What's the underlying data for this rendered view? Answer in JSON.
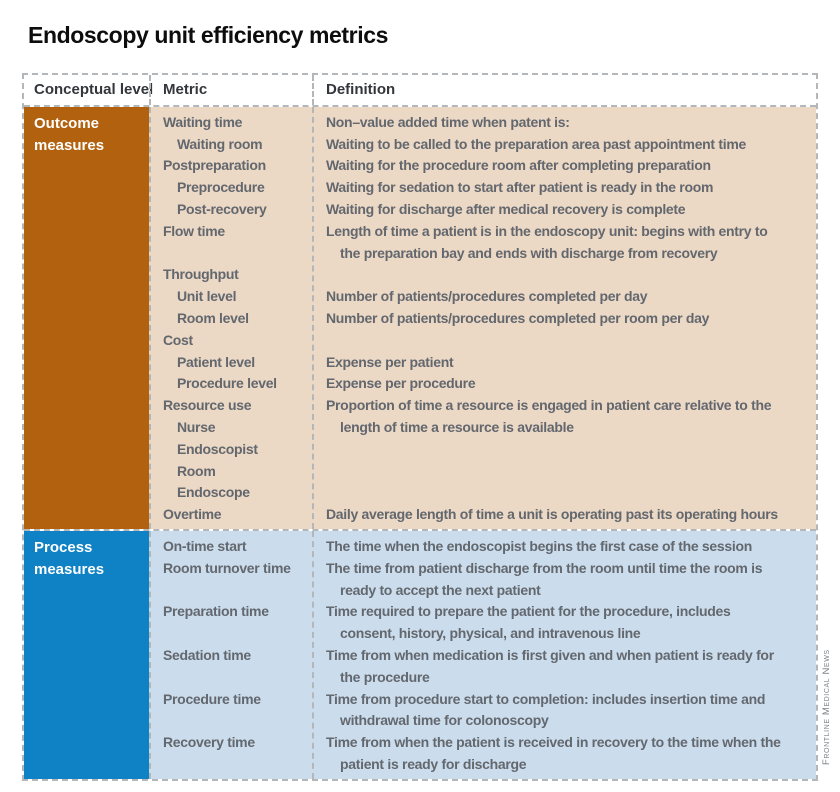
{
  "title": "Endoscopy unit efficiency metrics",
  "credit": "Frontline Medical News",
  "table": {
    "headers": [
      "Conceptual level",
      "Metric",
      "Definition"
    ],
    "sections": [
      {
        "label": "Outcome measures",
        "colors": {
          "label_bg": "#b2610f",
          "body_bg": "#ebd8c5"
        },
        "lines": [
          {
            "metric": "Waiting time",
            "metric_indent": false,
            "definition": "Non–value added time when patent is:",
            "def_indent": false
          },
          {
            "metric": "Waiting room",
            "metric_indent": true,
            "definition": "Waiting to be called to the preparation area past appointment time",
            "def_indent": false
          },
          {
            "metric": "Postpreparation",
            "metric_indent": false,
            "definition": "Waiting for the procedure room after completing preparation",
            "def_indent": false
          },
          {
            "metric": "Preprocedure",
            "metric_indent": true,
            "definition": "Waiting for sedation to start after patient is ready in the room",
            "def_indent": false
          },
          {
            "metric": "Post-recovery",
            "metric_indent": true,
            "definition": "Waiting for discharge after medical recovery is complete",
            "def_indent": false
          },
          {
            "metric": "Flow time",
            "metric_indent": false,
            "definition": "Length of time a patient is in the endoscopy unit: begins with entry to",
            "def_indent": false
          },
          {
            "metric": "",
            "metric_indent": false,
            "definition": "the preparation bay and ends with discharge from recovery",
            "def_indent": true
          },
          {
            "metric": "Throughput",
            "metric_indent": false,
            "definition": "",
            "def_indent": false
          },
          {
            "metric": "Unit level",
            "metric_indent": true,
            "definition": "Number of patients/procedures completed per day",
            "def_indent": false
          },
          {
            "metric": "Room level",
            "metric_indent": true,
            "definition": "Number of patients/procedures completed per room per day",
            "def_indent": false
          },
          {
            "metric": "Cost",
            "metric_indent": false,
            "definition": "",
            "def_indent": false
          },
          {
            "metric": "Patient level",
            "metric_indent": true,
            "definition": "Expense per patient",
            "def_indent": false
          },
          {
            "metric": "Procedure level",
            "metric_indent": true,
            "definition": "Expense per procedure",
            "def_indent": false
          },
          {
            "metric": "Resource use",
            "metric_indent": false,
            "definition": "Proportion of time a resource is engaged in patient care relative to the",
            "def_indent": false
          },
          {
            "metric": "Nurse",
            "metric_indent": true,
            "definition": "length of time a resource is available",
            "def_indent": true
          },
          {
            "metric": "Endoscopist",
            "metric_indent": true,
            "definition": "",
            "def_indent": false
          },
          {
            "metric": "Room",
            "metric_indent": true,
            "definition": "",
            "def_indent": false
          },
          {
            "metric": "Endoscope",
            "metric_indent": true,
            "definition": "",
            "def_indent": false
          },
          {
            "metric": "Overtime",
            "metric_indent": false,
            "definition": "Daily average length of time a unit is operating past its operating hours",
            "def_indent": false
          }
        ]
      },
      {
        "label": "Process measures",
        "colors": {
          "label_bg": "#0e82c5",
          "body_bg": "#cbddec"
        },
        "lines": [
          {
            "metric": "On-time start",
            "metric_indent": false,
            "definition": "The time when the endoscopist begins the first case of the session",
            "def_indent": false
          },
          {
            "metric": "Room turnover time",
            "metric_indent": false,
            "definition": "The time from patient discharge from the room until time the room is",
            "def_indent": false
          },
          {
            "metric": "",
            "metric_indent": false,
            "definition": "ready to accept the next patient",
            "def_indent": true
          },
          {
            "metric": "Preparation time",
            "metric_indent": false,
            "definition": "Time required to prepare the patient for the procedure, includes",
            "def_indent": false
          },
          {
            "metric": "",
            "metric_indent": false,
            "definition": "consent, history, physical, and intravenous line",
            "def_indent": true
          },
          {
            "metric": "Sedation time",
            "metric_indent": false,
            "definition": "Time from when medication is first given and when patient is ready for",
            "def_indent": false
          },
          {
            "metric": "",
            "metric_indent": false,
            "definition": "the procedure",
            "def_indent": true
          },
          {
            "metric": "Procedure time",
            "metric_indent": false,
            "definition": "Time from procedure start to completion: includes insertion time and",
            "def_indent": false
          },
          {
            "metric": "",
            "metric_indent": false,
            "definition": "withdrawal time for colonoscopy",
            "def_indent": true
          },
          {
            "metric": "Recovery time",
            "metric_indent": false,
            "definition": "Time from when the patient is received in recovery to the time when the",
            "def_indent": false
          },
          {
            "metric": "",
            "metric_indent": false,
            "definition": "patient is ready for discharge",
            "def_indent": true
          }
        ]
      }
    ]
  }
}
